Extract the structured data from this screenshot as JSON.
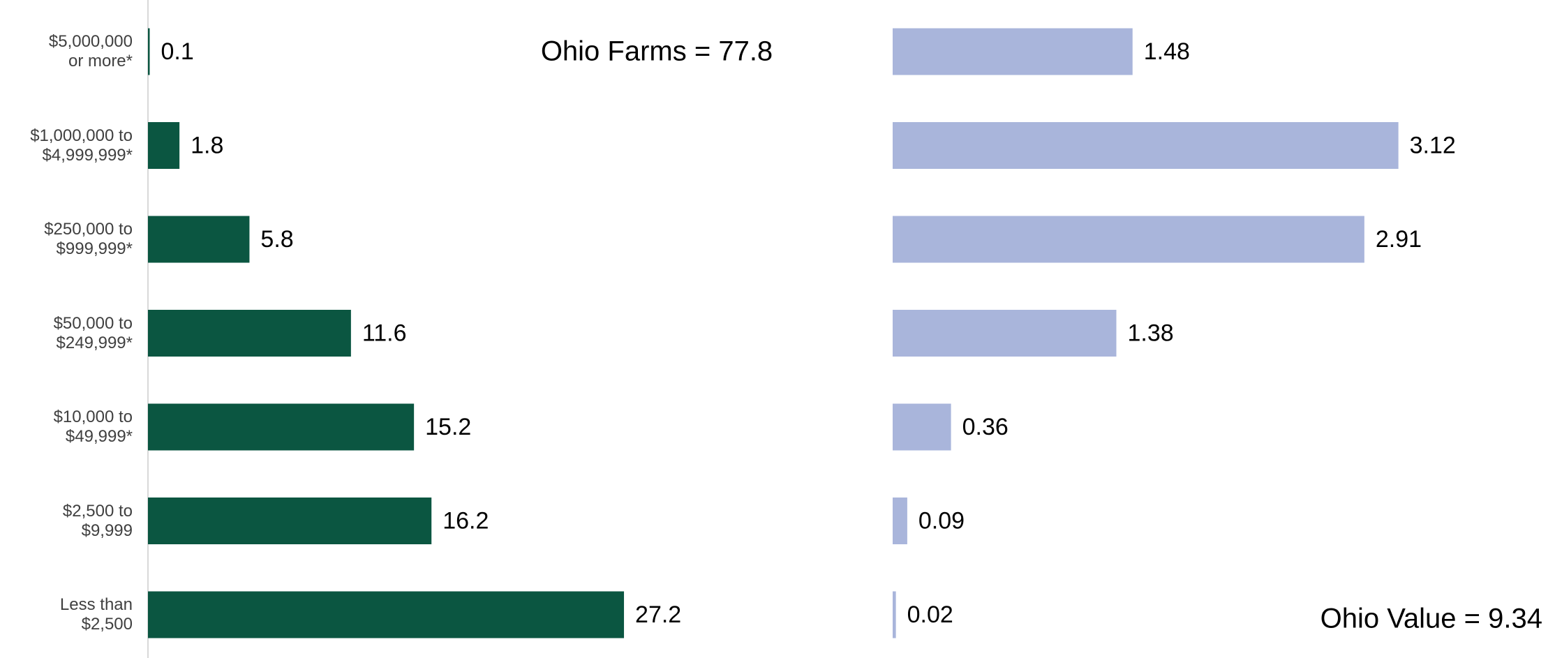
{
  "chart_data": [
    {
      "type": "bar",
      "orientation": "horizontal",
      "categories": [
        "$5,000,000\nor more*",
        "$1,000,000 to\n$4,999,999*",
        "$250,000 to\n$999,999*",
        "$50,000 to\n$249,999*",
        "$10,000 to\n$49,999*",
        "$2,500 to\n$9,999",
        "Less than\n$2,500"
      ],
      "values": [
        0.1,
        1.8,
        5.8,
        11.6,
        15.2,
        16.2,
        27.2
      ],
      "color": "#0b5641",
      "xlim": [
        0,
        40
      ],
      "annotation": "Ohio Farms = 77.8"
    },
    {
      "type": "bar",
      "orientation": "horizontal",
      "values": [
        1.48,
        3.12,
        2.91,
        1.38,
        0.36,
        0.09,
        0.02
      ],
      "color": "#a9b5db",
      "xlim": [
        0,
        4
      ],
      "annotation": "Ohio Value = 9.34"
    }
  ]
}
